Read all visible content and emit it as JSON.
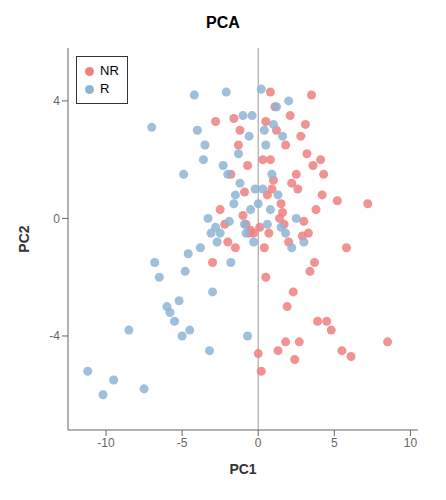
{
  "chart_data": {
    "type": "scatter",
    "title": "PCA",
    "x_label": "PC1",
    "y_label": "PC2",
    "xlim": [
      -12.5,
      10.5
    ],
    "ylim": [
      -7.2,
      5.8
    ],
    "xticks": [
      -10,
      -5,
      0,
      5,
      10
    ],
    "yticks": [
      -4,
      0,
      4
    ],
    "vline_x": 0,
    "grid": false,
    "legend": "upper left",
    "series": [
      {
        "name": "NR",
        "color": "#F08080",
        "marker": "circle",
        "x": [
          0.5,
          1.2,
          0.8,
          2.1,
          3.5,
          4.2,
          1.8,
          0.3,
          2.5,
          3.1,
          1.5,
          0.9,
          2.8,
          1.1,
          3.8,
          5.2,
          2.2,
          0.6,
          1.7,
          3.3,
          4.5,
          1.3,
          2.7,
          0.1,
          3.0,
          0.4,
          2.0,
          1.6,
          3.6,
          4.8,
          0.7,
          2.3,
          1.9,
          3.2,
          5.5,
          0.2,
          2.6,
          1.4,
          3.7,
          6.1,
          0.8,
          2.9,
          4.1,
          1.0,
          3.4,
          5.8,
          0.5,
          2.4,
          1.8,
          4.3,
          7.2,
          8.5,
          3.9,
          0.0,
          -0.3,
          -0.8,
          -1.0,
          -0.5,
          -1.5,
          -2.0,
          -1.2,
          -2.5,
          -0.9,
          -1.8,
          -0.6,
          -1.3,
          -2.2,
          -3.0,
          -2.8,
          -0.7,
          -1.6
        ],
        "values": [
          3.3,
          3.0,
          4.3,
          3.5,
          4.2,
          0.8,
          2.5,
          2.0,
          1.5,
          3.2,
          0.5,
          1.0,
          2.8,
          3.8,
          0.3,
          0.6,
          1.2,
          0.8,
          -0.2,
          -0.5,
          -3.5,
          -4.5,
          -4.2,
          -0.3,
          -0.1,
          -1.0,
          -0.8,
          0.2,
          1.8,
          -3.8,
          -0.5,
          -2.5,
          -3.0,
          2.2,
          -4.5,
          -5.2,
          1.0,
          0.0,
          -1.5,
          -4.7,
          2.0,
          -0.6,
          2.0,
          1.3,
          -1.8,
          -1.0,
          -2.0,
          -4.8,
          -4.2,
          1.5,
          0.5,
          -4.2,
          -3.5,
          -4.6,
          -0.5,
          -0.2,
          0.1,
          -0.4,
          -1.0,
          -0.8,
          3.0,
          0.3,
          0.9,
          1.5,
          -0.5,
          2.5,
          -0.2,
          -1.5,
          3.3,
          1.8,
          3.4
        ]
      },
      {
        "name": "R",
        "color": "#8EB4D5",
        "marker": "circle",
        "x": [
          -0.5,
          -1.2,
          -2.0,
          -3.5,
          -0.8,
          -1.5,
          -4.0,
          -0.3,
          -2.8,
          -4.5,
          -5.5,
          -3.0,
          -1.8,
          -5.0,
          -6.0,
          -3.8,
          -2.3,
          -4.8,
          -6.5,
          -0.6,
          -1.0,
          -2.5,
          -0.2,
          -3.2,
          -5.8,
          -0.9,
          -2.1,
          -4.2,
          -7.0,
          -1.6,
          -3.6,
          -5.2,
          -0.7,
          -2.7,
          -4.6,
          -7.5,
          -1.3,
          -3.1,
          -0.4,
          -1.9,
          -9.5,
          -10.2,
          -8.5,
          -11.2,
          -3.3,
          -4.9,
          -6.8,
          0.0,
          0.3,
          0.5,
          1.0,
          0.8,
          1.5,
          0.2,
          2.0,
          1.2,
          0.6,
          1.8,
          2.5,
          3.0,
          0.9,
          1.3,
          2.2,
          0.4,
          1.6
        ],
        "values": [
          0.3,
          1.2,
          1.5,
          2.5,
          -0.5,
          0.8,
          3.0,
          -0.8,
          -0.3,
          -3.8,
          -3.5,
          -2.5,
          -1.5,
          -4.0,
          -3.0,
          -1.0,
          1.8,
          -1.8,
          -2.0,
          2.8,
          3.5,
          -0.5,
          1.0,
          -4.5,
          -3.2,
          -0.2,
          4.3,
          4.2,
          3.1,
          0.5,
          2.0,
          -2.8,
          -4.0,
          -0.8,
          -1.2,
          -5.8,
          2.2,
          -0.5,
          3.5,
          -0.1,
          -5.5,
          -6.0,
          -3.8,
          -5.2,
          0.0,
          1.5,
          -1.5,
          0.5,
          1.0,
          2.5,
          3.2,
          0.3,
          -0.3,
          4.4,
          4.0,
          3.8,
          -0.2,
          -0.5,
          0.0,
          -0.8,
          1.5,
          0.8,
          -1.0,
          3.0,
          2.8
        ]
      }
    ]
  }
}
